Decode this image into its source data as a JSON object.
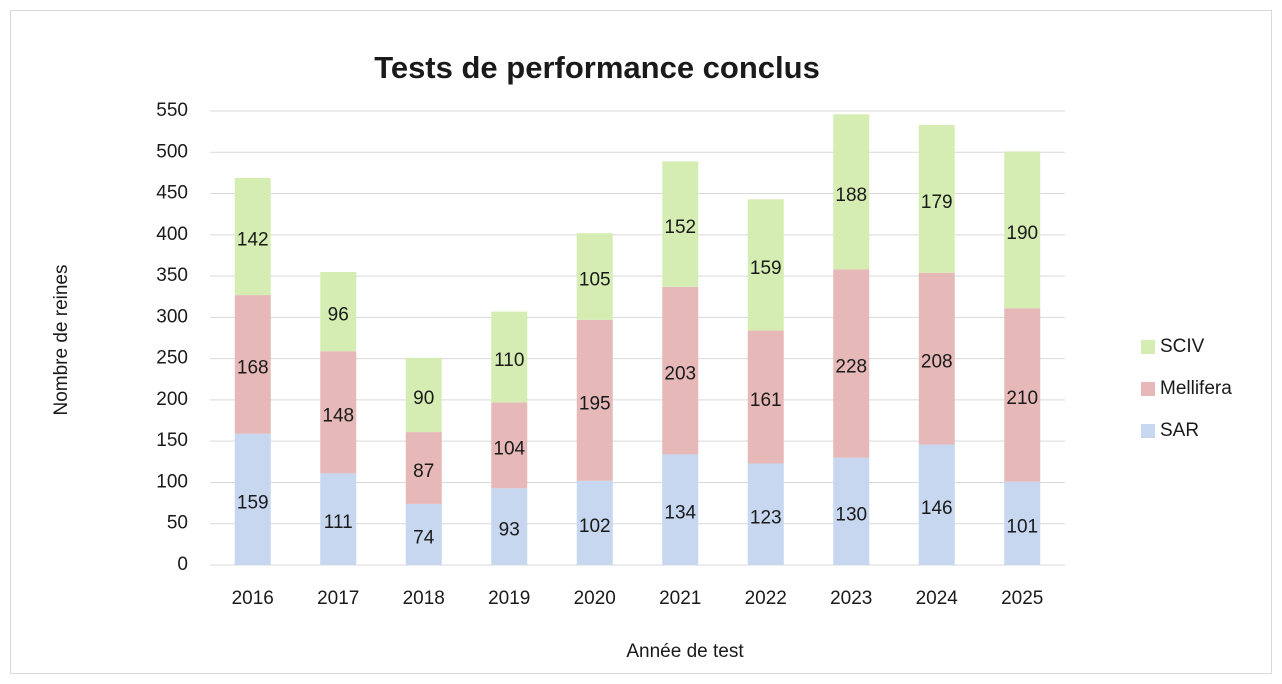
{
  "chart_data": {
    "type": "stacked_bar",
    "title": "Tests de performance conclus",
    "x_label": "Année de test",
    "y_label": "Nombre de reines",
    "categories": [
      "2016",
      "2017",
      "2018",
      "2019",
      "2020",
      "2021",
      "2022",
      "2023",
      "2024",
      "2025"
    ],
    "series": [
      {
        "name": "SAR",
        "color": "#c6d7ef",
        "values": [
          159,
          111,
          74,
          93,
          102,
          134,
          123,
          130,
          146,
          101
        ]
      },
      {
        "name": "Mellifera",
        "color": "#e6b9b8",
        "values": [
          168,
          148,
          87,
          104,
          195,
          203,
          161,
          228,
          208,
          210
        ]
      },
      {
        "name": "SCIV",
        "color": "#d5edb3",
        "values": [
          142,
          96,
          90,
          110,
          105,
          152,
          159,
          188,
          179,
          190
        ]
      }
    ],
    "ylim": [
      0,
      550
    ],
    "yticks": [
      0,
      50,
      100,
      150,
      200,
      250,
      300,
      350,
      400,
      450,
      500,
      550
    ],
    "grid": true,
    "legend": "right"
  }
}
